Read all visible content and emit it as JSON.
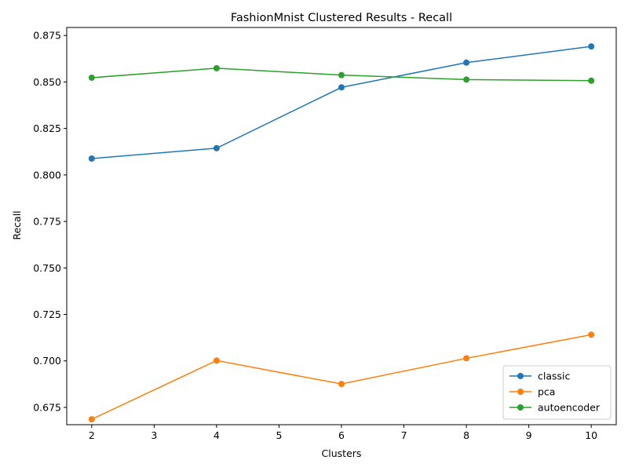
{
  "chart_data": {
    "type": "line",
    "title": "FashionMnist Clustered Results - Recall",
    "xlabel": "Clusters",
    "ylabel": "Recall",
    "x": [
      2,
      4,
      6,
      8,
      10
    ],
    "xlim": [
      1.6,
      10.4
    ],
    "ylim": [
      0.6657,
      0.8793
    ],
    "xticks": [
      2,
      3,
      4,
      5,
      6,
      7,
      8,
      9,
      10
    ],
    "yticks": [
      0.675,
      0.7,
      0.725,
      0.75,
      0.775,
      0.8,
      0.825,
      0.85,
      0.875
    ],
    "grid": false,
    "legend_position": "lower-right",
    "series": [
      {
        "name": "classic",
        "color": "#1f77b4",
        "values": [
          0.8088,
          0.8144,
          0.8471,
          0.8604,
          0.8691
        ]
      },
      {
        "name": "pca",
        "color": "#ff7f0e",
        "values": [
          0.6686,
          0.7002,
          0.6876,
          0.7014,
          0.7141
        ]
      },
      {
        "name": "autoencoder",
        "color": "#2ca02c",
        "values": [
          0.8523,
          0.8574,
          0.8537,
          0.8513,
          0.8507
        ]
      }
    ]
  }
}
